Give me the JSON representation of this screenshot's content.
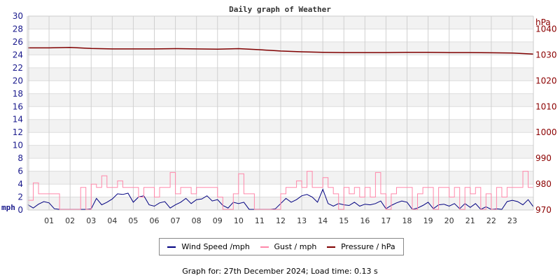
{
  "chart_data": {
    "type": "line",
    "title": "Daily graph of Weather",
    "xlabel": "",
    "ylabel_left": "mph",
    "ylabel_right": "hPa",
    "left_axis": {
      "ticks": [
        0,
        2,
        4,
        6,
        8,
        10,
        12,
        14,
        16,
        18,
        20,
        22,
        24,
        26,
        28,
        30
      ],
      "ylim": [
        0,
        30
      ]
    },
    "right_axis": {
      "ticks": [
        970,
        980,
        990,
        1000,
        1010,
        1020,
        1030,
        1040
      ],
      "ylim": [
        970,
        1045
      ]
    },
    "x_ticks": [
      "01",
      "02",
      "03",
      "04",
      "05",
      "06",
      "07",
      "08",
      "09",
      "10",
      "11",
      "12",
      "13",
      "14",
      "15",
      "16",
      "17",
      "18",
      "19",
      "20",
      "21",
      "22",
      "23"
    ],
    "x_range_hours": [
      0,
      24
    ],
    "grid": true,
    "legend_position": "bottom",
    "series": [
      {
        "name": "Wind Speed /mph",
        "axis": "left",
        "color": "#000080",
        "x": [
          0,
          0.25,
          0.5,
          0.75,
          1,
          1.25,
          1.5,
          1.75,
          2,
          2.25,
          2.5,
          2.75,
          3,
          3.25,
          3.5,
          3.75,
          4,
          4.25,
          4.5,
          4.75,
          5,
          5.25,
          5.5,
          5.75,
          6,
          6.25,
          6.5,
          6.75,
          7,
          7.25,
          7.5,
          7.75,
          8,
          8.25,
          8.5,
          8.75,
          9,
          9.25,
          9.5,
          9.75,
          10,
          10.25,
          10.5,
          10.75,
          11,
          11.25,
          11.5,
          11.75,
          12,
          12.25,
          12.5,
          12.75,
          13,
          13.25,
          13.5,
          13.75,
          14,
          14.25,
          14.5,
          14.75,
          15,
          15.25,
          15.5,
          15.75,
          16,
          16.25,
          16.5,
          16.75,
          17,
          17.25,
          17.5,
          17.75,
          18,
          18.25,
          18.5,
          18.75,
          19,
          19.25,
          19.5,
          19.75,
          20,
          20.25,
          20.5,
          20.75,
          21,
          21.25,
          21.5,
          21.75,
          22,
          22.25,
          22.5,
          22.75,
          23,
          23.25,
          23.5,
          23.75,
          24
        ],
        "values": [
          0.8,
          0.3,
          0.9,
          1.3,
          1.1,
          0.2,
          0.1,
          0.1,
          0.1,
          0.1,
          0.1,
          0.1,
          0.2,
          1.8,
          0.8,
          1.2,
          1.7,
          2.5,
          2.4,
          2.6,
          1.2,
          2.0,
          2.2,
          0.8,
          0.6,
          1.1,
          1.3,
          0.3,
          0.8,
          1.2,
          1.8,
          1.0,
          1.6,
          1.7,
          2.2,
          1.4,
          1.6,
          0.7,
          0.3,
          1.2,
          1.0,
          1.2,
          0.1,
          0.1,
          0.1,
          0.1,
          0.1,
          0.2,
          1.0,
          1.8,
          1.2,
          1.6,
          2.2,
          2.4,
          2.0,
          1.2,
          3.2,
          1.0,
          0.6,
          1.0,
          0.8,
          0.7,
          1.2,
          0.6,
          0.9,
          0.8,
          1.0,
          1.4,
          0.2,
          0.7,
          1.1,
          1.4,
          1.2,
          0.1,
          0.3,
          0.7,
          1.2,
          0.2,
          0.8,
          0.9,
          0.6,
          1.0,
          0.2,
          1.0,
          0.4,
          1.0,
          0.1,
          0.5,
          0.1,
          0.2,
          0.1,
          1.3,
          1.5,
          1.3,
          0.8,
          1.6,
          0.5
        ],
        "y_estimated_from_pixels": true
      },
      {
        "name": "Gust / mph",
        "axis": "left",
        "color": "#ff88aa",
        "x": [
          0,
          0.25,
          0.5,
          0.75,
          1,
          1.25,
          1.5,
          1.75,
          2,
          2.25,
          2.5,
          2.75,
          3,
          3.25,
          3.5,
          3.75,
          4,
          4.25,
          4.5,
          4.75,
          5,
          5.25,
          5.5,
          5.75,
          6,
          6.25,
          6.5,
          6.75,
          7,
          7.25,
          7.5,
          7.75,
          8,
          8.25,
          8.5,
          8.75,
          9,
          9.25,
          9.5,
          9.75,
          10,
          10.25,
          10.5,
          10.75,
          11,
          11.25,
          11.5,
          11.75,
          12,
          12.25,
          12.5,
          12.75,
          13,
          13.25,
          13.5,
          13.75,
          14,
          14.25,
          14.5,
          14.75,
          15,
          15.25,
          15.5,
          15.75,
          16,
          16.25,
          16.5,
          16.75,
          17,
          17.25,
          17.5,
          17.75,
          18,
          18.25,
          18.5,
          18.75,
          19,
          19.25,
          19.5,
          19.75,
          20,
          20.25,
          20.5,
          20.75,
          21,
          21.25,
          21.5,
          21.75,
          22,
          22.25,
          22.5,
          22.75,
          23,
          23.25,
          23.5,
          23.75,
          24
        ],
        "values": [
          1.5,
          4.2,
          2.5,
          2.5,
          2.5,
          2.5,
          0.1,
          0.1,
          0.1,
          0.1,
          3.5,
          0.1,
          4.0,
          3.5,
          5.3,
          3.5,
          3.5,
          4.5,
          3.5,
          3.5,
          3.5,
          2.0,
          3.5,
          3.5,
          2.0,
          3.5,
          3.5,
          5.8,
          2.5,
          3.5,
          3.5,
          2.5,
          3.5,
          3.5,
          3.5,
          3.5,
          2.0,
          0.1,
          0.1,
          2.5,
          5.6,
          2.5,
          2.5,
          0.1,
          0.1,
          0.1,
          0.1,
          0.1,
          2.5,
          3.5,
          3.5,
          4.5,
          3.5,
          6.0,
          3.5,
          3.5,
          5.0,
          3.5,
          2.5,
          0.1,
          3.5,
          2.5,
          3.5,
          2.0,
          3.5,
          2.0,
          5.8,
          2.5,
          0.1,
          2.5,
          3.5,
          3.5,
          3.5,
          0.1,
          2.5,
          3.5,
          3.5,
          0.1,
          3.5,
          3.5,
          2.0,
          3.5,
          0.1,
          3.5,
          2.5,
          3.5,
          0.1,
          2.5,
          0.1,
          3.5,
          2.0,
          3.5,
          3.5,
          3.5,
          6.0,
          3.5,
          2.0
        ],
        "y_estimated_from_pixels": true
      },
      {
        "name": "Pressure / hPa",
        "axis": "right",
        "color": "#800000",
        "x": [
          0,
          1,
          2,
          3,
          4,
          5,
          6,
          7,
          8,
          9,
          10,
          11,
          12,
          13,
          14,
          15,
          16,
          17,
          18,
          19,
          20,
          21,
          22,
          23,
          24
        ],
        "values": [
          1032.7,
          1032.7,
          1032.9,
          1032.5,
          1032.3,
          1032.3,
          1032.3,
          1032.4,
          1032.3,
          1032.2,
          1032.4,
          1032.0,
          1031.5,
          1031.2,
          1031.0,
          1030.9,
          1030.9,
          1030.9,
          1031.0,
          1031.0,
          1030.9,
          1030.9,
          1030.8,
          1030.7,
          1030.3
        ],
        "y_estimated_from_pixels": true
      }
    ]
  },
  "legend": {
    "wind": "Wind Speed /mph",
    "gust": "Gust / mph",
    "pressure": "Pressure / hPa",
    "wind_color": "#000080",
    "gust_color": "#ff88aa",
    "pressure_color": "#800000"
  },
  "footer": "Graph for: 27th December 2024; Load time: 0.13 s"
}
